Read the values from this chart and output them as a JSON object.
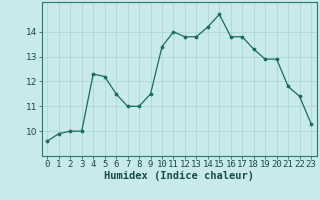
{
  "x": [
    0,
    1,
    2,
    3,
    4,
    5,
    6,
    7,
    8,
    9,
    10,
    11,
    12,
    13,
    14,
    15,
    16,
    17,
    18,
    19,
    20,
    21,
    22,
    23
  ],
  "y": [
    9.6,
    9.9,
    10.0,
    10.0,
    12.3,
    12.2,
    11.5,
    11.0,
    11.0,
    11.5,
    13.4,
    14.0,
    13.8,
    13.8,
    14.2,
    14.7,
    13.8,
    13.8,
    13.3,
    12.9,
    12.9,
    11.8,
    11.4,
    10.3
  ],
  "line_color": "#1a6b5e",
  "marker_color": "#1a6b5e",
  "bg_color": "#c8eaea",
  "grid_color": "#aad4d4",
  "xlabel": "Humidex (Indice chaleur)",
  "ylim": [
    9.0,
    15.2
  ],
  "xlim": [
    -0.5,
    23.5
  ],
  "yticks": [
    10,
    11,
    12,
    13,
    14
  ],
  "xticks": [
    0,
    1,
    2,
    3,
    4,
    5,
    6,
    7,
    8,
    9,
    10,
    11,
    12,
    13,
    14,
    15,
    16,
    17,
    18,
    19,
    20,
    21,
    22,
    23
  ],
  "xtick_labels": [
    "0",
    "1",
    "2",
    "3",
    "4",
    "5",
    "6",
    "7",
    "8",
    "9",
    "10",
    "11",
    "12",
    "13",
    "14",
    "15",
    "16",
    "17",
    "18",
    "19",
    "20",
    "21",
    "22",
    "23"
  ],
  "tick_fontsize": 6.5,
  "xlabel_fontsize": 7.5
}
